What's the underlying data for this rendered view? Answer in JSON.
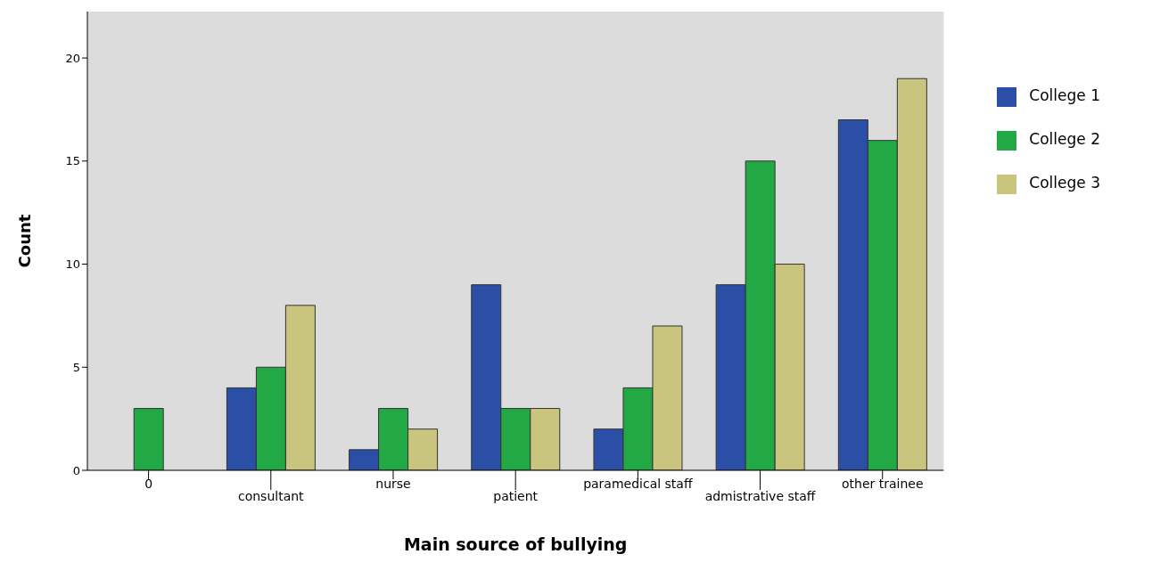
{
  "chart_data": {
    "type": "bar",
    "xlabel": "Main source of  bullying",
    "ylabel": "Count",
    "categories": [
      "0",
      "consultant",
      "nurse",
      "patient",
      "paramedical staff",
      "admistrative staff",
      "other trainee"
    ],
    "series": [
      {
        "name": "College 1",
        "color": "#2b4fa6",
        "values": [
          0,
          4,
          1,
          9,
          2,
          9,
          17
        ]
      },
      {
        "name": "College 2",
        "color": "#22a845",
        "values": [
          3,
          5,
          3,
          3,
          4,
          15,
          16
        ]
      },
      {
        "name": "College 3",
        "color": "#c9c47e",
        "values": [
          0,
          8,
          2,
          3,
          7,
          10,
          19
        ]
      }
    ],
    "ylim": [
      0,
      22.25
    ],
    "yticks": [
      0,
      5,
      10,
      15,
      20
    ],
    "grid": false,
    "legend": "right"
  }
}
